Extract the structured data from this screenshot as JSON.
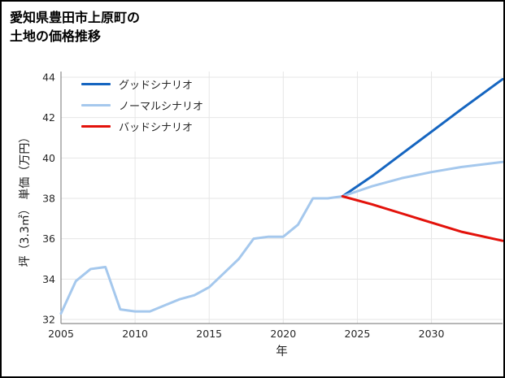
{
  "chart_data": {
    "type": "line",
    "title_lines": [
      "愛知県豊田市上原町の",
      "土地の価格推移"
    ],
    "xlabel": "年",
    "ylabel": "坪（3.3㎡） 単価（万円）",
    "xlim": [
      2005,
      2034.8
    ],
    "ylim": [
      31.8,
      44.28
    ],
    "xticks": [
      2005,
      2010,
      2015,
      2020,
      2025,
      2030
    ],
    "yticks": [
      32,
      34,
      36,
      38,
      40,
      42,
      44
    ],
    "grid": true,
    "grid_color": "#e6e6e6",
    "spine_color": "#8c8c8c",
    "tick_label_color": "#262626",
    "legend_position": "upper-left",
    "series": [
      {
        "key": "history",
        "color": "#a5c8ed",
        "width": 3,
        "legend": false,
        "x": [
          2005,
          2006,
          2007,
          2008,
          2009,
          2010,
          2011,
          2012,
          2013,
          2014,
          2015,
          2016,
          2017,
          2018,
          2019,
          2020,
          2021,
          2022,
          2023,
          2024
        ],
        "y": [
          32.3,
          33.9,
          34.5,
          34.6,
          32.5,
          32.4,
          32.4,
          32.7,
          33.0,
          33.2,
          33.6,
          34.3,
          35.0,
          36.0,
          36.1,
          36.1,
          36.7,
          38.0,
          38.0,
          38.1
        ]
      },
      {
        "key": "good",
        "name": "グッドシナリオ",
        "color": "#1565c0",
        "width": 3,
        "legend": true,
        "x": [
          2024,
          2026,
          2028,
          2030,
          2032,
          2034.8
        ],
        "y": [
          38.1,
          39.1,
          40.2,
          41.3,
          42.4,
          43.9
        ]
      },
      {
        "key": "normal",
        "name": "ノーマルシナリオ",
        "color": "#a5c8ed",
        "width": 3,
        "legend": true,
        "x": [
          2024,
          2026,
          2028,
          2030,
          2032,
          2034.8
        ],
        "y": [
          38.1,
          38.6,
          39.0,
          39.3,
          39.55,
          39.8
        ]
      },
      {
        "key": "bad",
        "name": "バッドシナリオ",
        "color": "#e3120b",
        "width": 3,
        "legend": true,
        "x": [
          2024,
          2026,
          2028,
          2030,
          2032,
          2034.8
        ],
        "y": [
          38.1,
          37.7,
          37.25,
          36.8,
          36.35,
          35.9
        ]
      }
    ]
  }
}
